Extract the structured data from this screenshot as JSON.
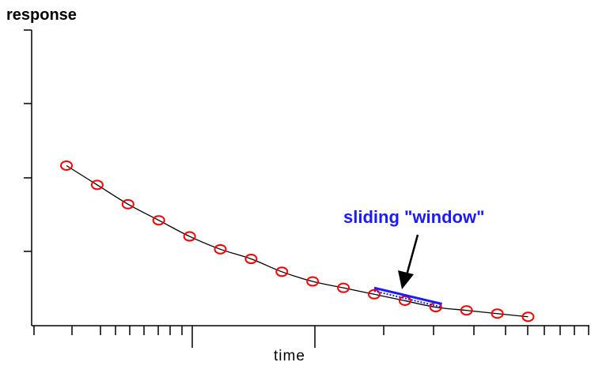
{
  "chart_data": {
    "type": "scatter",
    "xlabel": "time",
    "ylabel": "response",
    "series": [
      {
        "color": "#ff0000",
        "marker": "open-circle",
        "line": "smooth",
        "line_color": "#000000",
        "x": [
          1,
          2,
          3,
          4,
          5,
          6,
          7,
          8,
          9,
          10,
          11,
          12,
          13,
          14,
          15,
          16
        ],
        "y": [
          0.5,
          0.44,
          0.38,
          0.33,
          0.28,
          0.24,
          0.21,
          0.17,
          0.14,
          0.12,
          0.1,
          0.08,
          0.06,
          0.05,
          0.04,
          0.03
        ]
      }
    ],
    "annotation": {
      "text": "sliding \"window\"",
      "color": "#1a1aff",
      "window_x": [
        11,
        13.2
      ],
      "window_y": [
        0.12,
        0.07
      ]
    },
    "grid": false,
    "legend": "none"
  }
}
